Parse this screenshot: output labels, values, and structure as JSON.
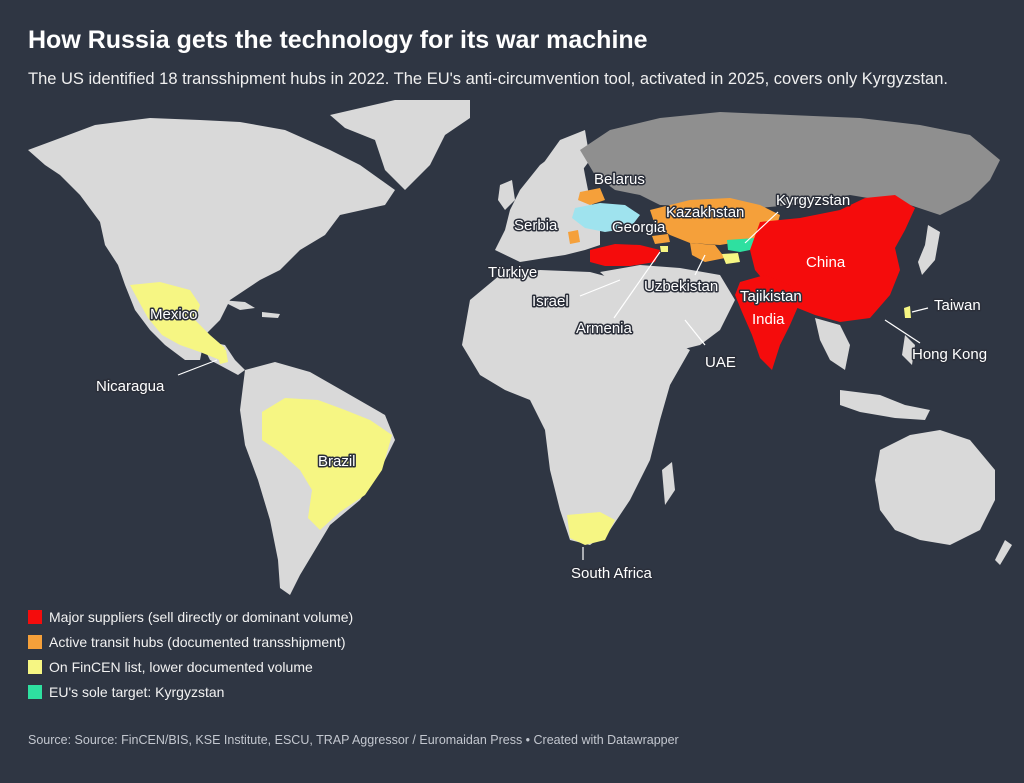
{
  "title": "How Russia gets the technology for its war machine",
  "subtitle": "The US identified 18 transshipment hubs in 2022. The EU's anti-circumvention tool, activated in 2025, covers only Kyrgyzstan.",
  "colors": {
    "background": "#2f3643",
    "land": "#d9d9d9",
    "russia": "#8f8f8f",
    "major_supplier": "#f50c0c",
    "transit_hub": "#f5a03a",
    "fincen_list": "#f6f683",
    "eu_target": "#2ee0a0",
    "belarus_ukraine_area": "#9fe3ee"
  },
  "legend": [
    {
      "label": "Major suppliers (sell directly or dominant volume)",
      "color": "#f50c0c"
    },
    {
      "label": "Active transit hubs (documented transshipment)",
      "color": "#f5a03a"
    },
    {
      "label": "On FinCEN list, lower documented volume",
      "color": "#f6f683"
    },
    {
      "label": "EU's sole target: Kyrgyzstan",
      "color": "#2ee0a0"
    }
  ],
  "labels": {
    "belarus": "Belarus",
    "kazakhstan": "Kazakhstan",
    "kyrgyzstan": "Kyrgyzstan",
    "serbia": "Serbia",
    "georgia": "Georgia",
    "turkiye": "Türkiye",
    "china": "China",
    "uzbekistan": "Uzbekistan",
    "israel": "Israel",
    "tajikistan": "Tajikistan",
    "taiwan": "Taiwan",
    "india": "India",
    "armenia": "Armenia",
    "hong_kong": "Hong Kong",
    "uae": "UAE",
    "mexico": "Mexico",
    "nicaragua": "Nicaragua",
    "brazil": "Brazil",
    "south_africa": "South Africa"
  },
  "source": "Source: Source: FinCEN/BIS, KSE Institute, ESCU, TRAP Aggressor / Euromaidan Press • Created with Datawrapper"
}
